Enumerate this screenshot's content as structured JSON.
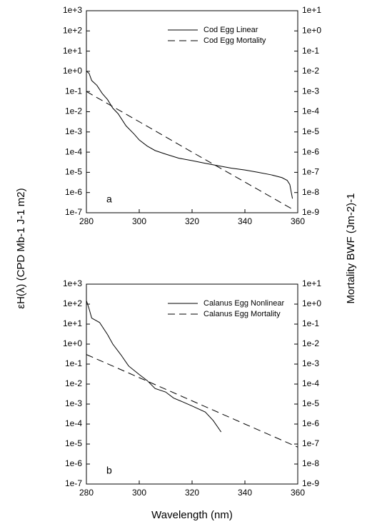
{
  "x_label": "Wavelength (nm)",
  "y_label": "εH(λ) (CPD Mb-1 J-1 m2)",
  "y2_label": "Mortality BWF (Jm-2)-1",
  "chart_data": [
    {
      "type": "line",
      "annotation": "a",
      "log_scale": true,
      "legend": "upper right",
      "xlim": [
        280,
        360
      ],
      "xticks": [
        280,
        300,
        320,
        340,
        360
      ],
      "ylim": [
        1e-07,
        1000
      ],
      "yticks": [
        {
          "value": 1e-07,
          "label": "1e-7"
        },
        {
          "value": 1e-06,
          "label": "1e-6"
        },
        {
          "value": 1e-05,
          "label": "1e-5"
        },
        {
          "value": 0.0001,
          "label": "1e-4"
        },
        {
          "value": 0.001,
          "label": "1e-3"
        },
        {
          "value": 0.01,
          "label": "1e-2"
        },
        {
          "value": 0.1,
          "label": "1e-1"
        },
        {
          "value": 1,
          "label": "1e+0"
        },
        {
          "value": 10,
          "label": "1e+1"
        },
        {
          "value": 100,
          "label": "1e+2"
        },
        {
          "value": 1000,
          "label": "1e+3"
        }
      ],
      "y2lim": [
        1e-09,
        10
      ],
      "y2ticks": [
        {
          "value": 1e-09,
          "label": "1e-9"
        },
        {
          "value": 1e-08,
          "label": "1e-8"
        },
        {
          "value": 1e-07,
          "label": "1e-7"
        },
        {
          "value": 1e-06,
          "label": "1e-6"
        },
        {
          "value": 1e-05,
          "label": "1e-5"
        },
        {
          "value": 0.0001,
          "label": "1e-4"
        },
        {
          "value": 0.001,
          "label": "1e-3"
        },
        {
          "value": 0.01,
          "label": "1e-2"
        },
        {
          "value": 0.1,
          "label": "1e-1"
        },
        {
          "value": 1,
          "label": "1e+0"
        },
        {
          "value": 10,
          "label": "1e+1"
        }
      ],
      "series": [
        {
          "name": "Cod Egg Linear",
          "color": "#000000",
          "dash": false,
          "x": [
            280,
            281,
            282,
            284,
            286,
            288,
            290,
            292,
            295,
            298,
            300,
            303,
            306,
            310,
            315,
            320,
            325,
            330,
            335,
            340,
            345,
            350,
            354,
            356,
            357,
            358
          ],
          "values": [
            1.0,
            0.8,
            0.35,
            0.2,
            0.08,
            0.04,
            0.015,
            0.008,
            0.002,
            0.0008,
            0.0004,
            0.0002,
            0.00012,
            8e-05,
            5e-05,
            3.8e-05,
            2.8e-05,
            2.1e-05,
            1.6e-05,
            1.3e-05,
            1e-05,
            7.5e-06,
            5.5e-06,
            4e-06,
            2.5e-06,
            5e-07
          ]
        },
        {
          "name": "Cod Egg Mortality",
          "color": "#000000",
          "dash": true,
          "axis": "y2",
          "x": [
            280,
            300,
            320,
            340,
            358
          ],
          "values": [
            0.001,
            3.2e-05,
            1e-06,
            3.3e-08,
            1.5e-09
          ]
        }
      ]
    },
    {
      "type": "line",
      "annotation": "b",
      "log_scale": true,
      "legend": "upper right",
      "xlim": [
        280,
        360
      ],
      "xticks": [
        280,
        300,
        320,
        340,
        360
      ],
      "ylim": [
        1e-07,
        1000
      ],
      "yticks": [
        {
          "value": 1e-07,
          "label": "1e-7"
        },
        {
          "value": 1e-06,
          "label": "1e-6"
        },
        {
          "value": 1e-05,
          "label": "1e-5"
        },
        {
          "value": 0.0001,
          "label": "1e-4"
        },
        {
          "value": 0.001,
          "label": "1e-3"
        },
        {
          "value": 0.01,
          "label": "1e-2"
        },
        {
          "value": 0.1,
          "label": "1e-1"
        },
        {
          "value": 1,
          "label": "1e+0"
        },
        {
          "value": 10,
          "label": "1e+1"
        },
        {
          "value": 100,
          "label": "1e+2"
        },
        {
          "value": 1000,
          "label": "1e+3"
        }
      ],
      "y2lim": [
        1e-09,
        10
      ],
      "y2ticks": [
        {
          "value": 1e-09,
          "label": "1e-9"
        },
        {
          "value": 1e-08,
          "label": "1e-8"
        },
        {
          "value": 1e-07,
          "label": "1e-7"
        },
        {
          "value": 1e-06,
          "label": "1e-6"
        },
        {
          "value": 1e-05,
          "label": "1e-5"
        },
        {
          "value": 0.0001,
          "label": "1e-4"
        },
        {
          "value": 0.001,
          "label": "1e-3"
        },
        {
          "value": 0.01,
          "label": "1e-2"
        },
        {
          "value": 0.1,
          "label": "1e-1"
        },
        {
          "value": 1,
          "label": "1e+0"
        },
        {
          "value": 10,
          "label": "1e+1"
        }
      ],
      "series": [
        {
          "name": "Calanus Egg Nonlinear",
          "color": "#000000",
          "dash": false,
          "x": [
            280,
            281,
            282,
            285,
            288,
            290,
            293,
            296,
            300,
            303,
            306,
            310,
            313,
            317,
            320,
            325,
            328,
            331
          ],
          "values": [
            150,
            60,
            20,
            12,
            3,
            1,
            0.3,
            0.08,
            0.03,
            0.015,
            0.006,
            0.004,
            0.002,
            0.0012,
            0.0008,
            0.0004,
            0.00015,
            4e-05
          ]
        },
        {
          "name": "Calanus Egg Mortality",
          "color": "#000000",
          "dash": true,
          "axis": "y2",
          "x": [
            280,
            300,
            320,
            340,
            360
          ],
          "values": [
            0.003,
            0.00021,
            1.45e-05,
            1e-06,
            7e-08
          ]
        }
      ]
    }
  ]
}
